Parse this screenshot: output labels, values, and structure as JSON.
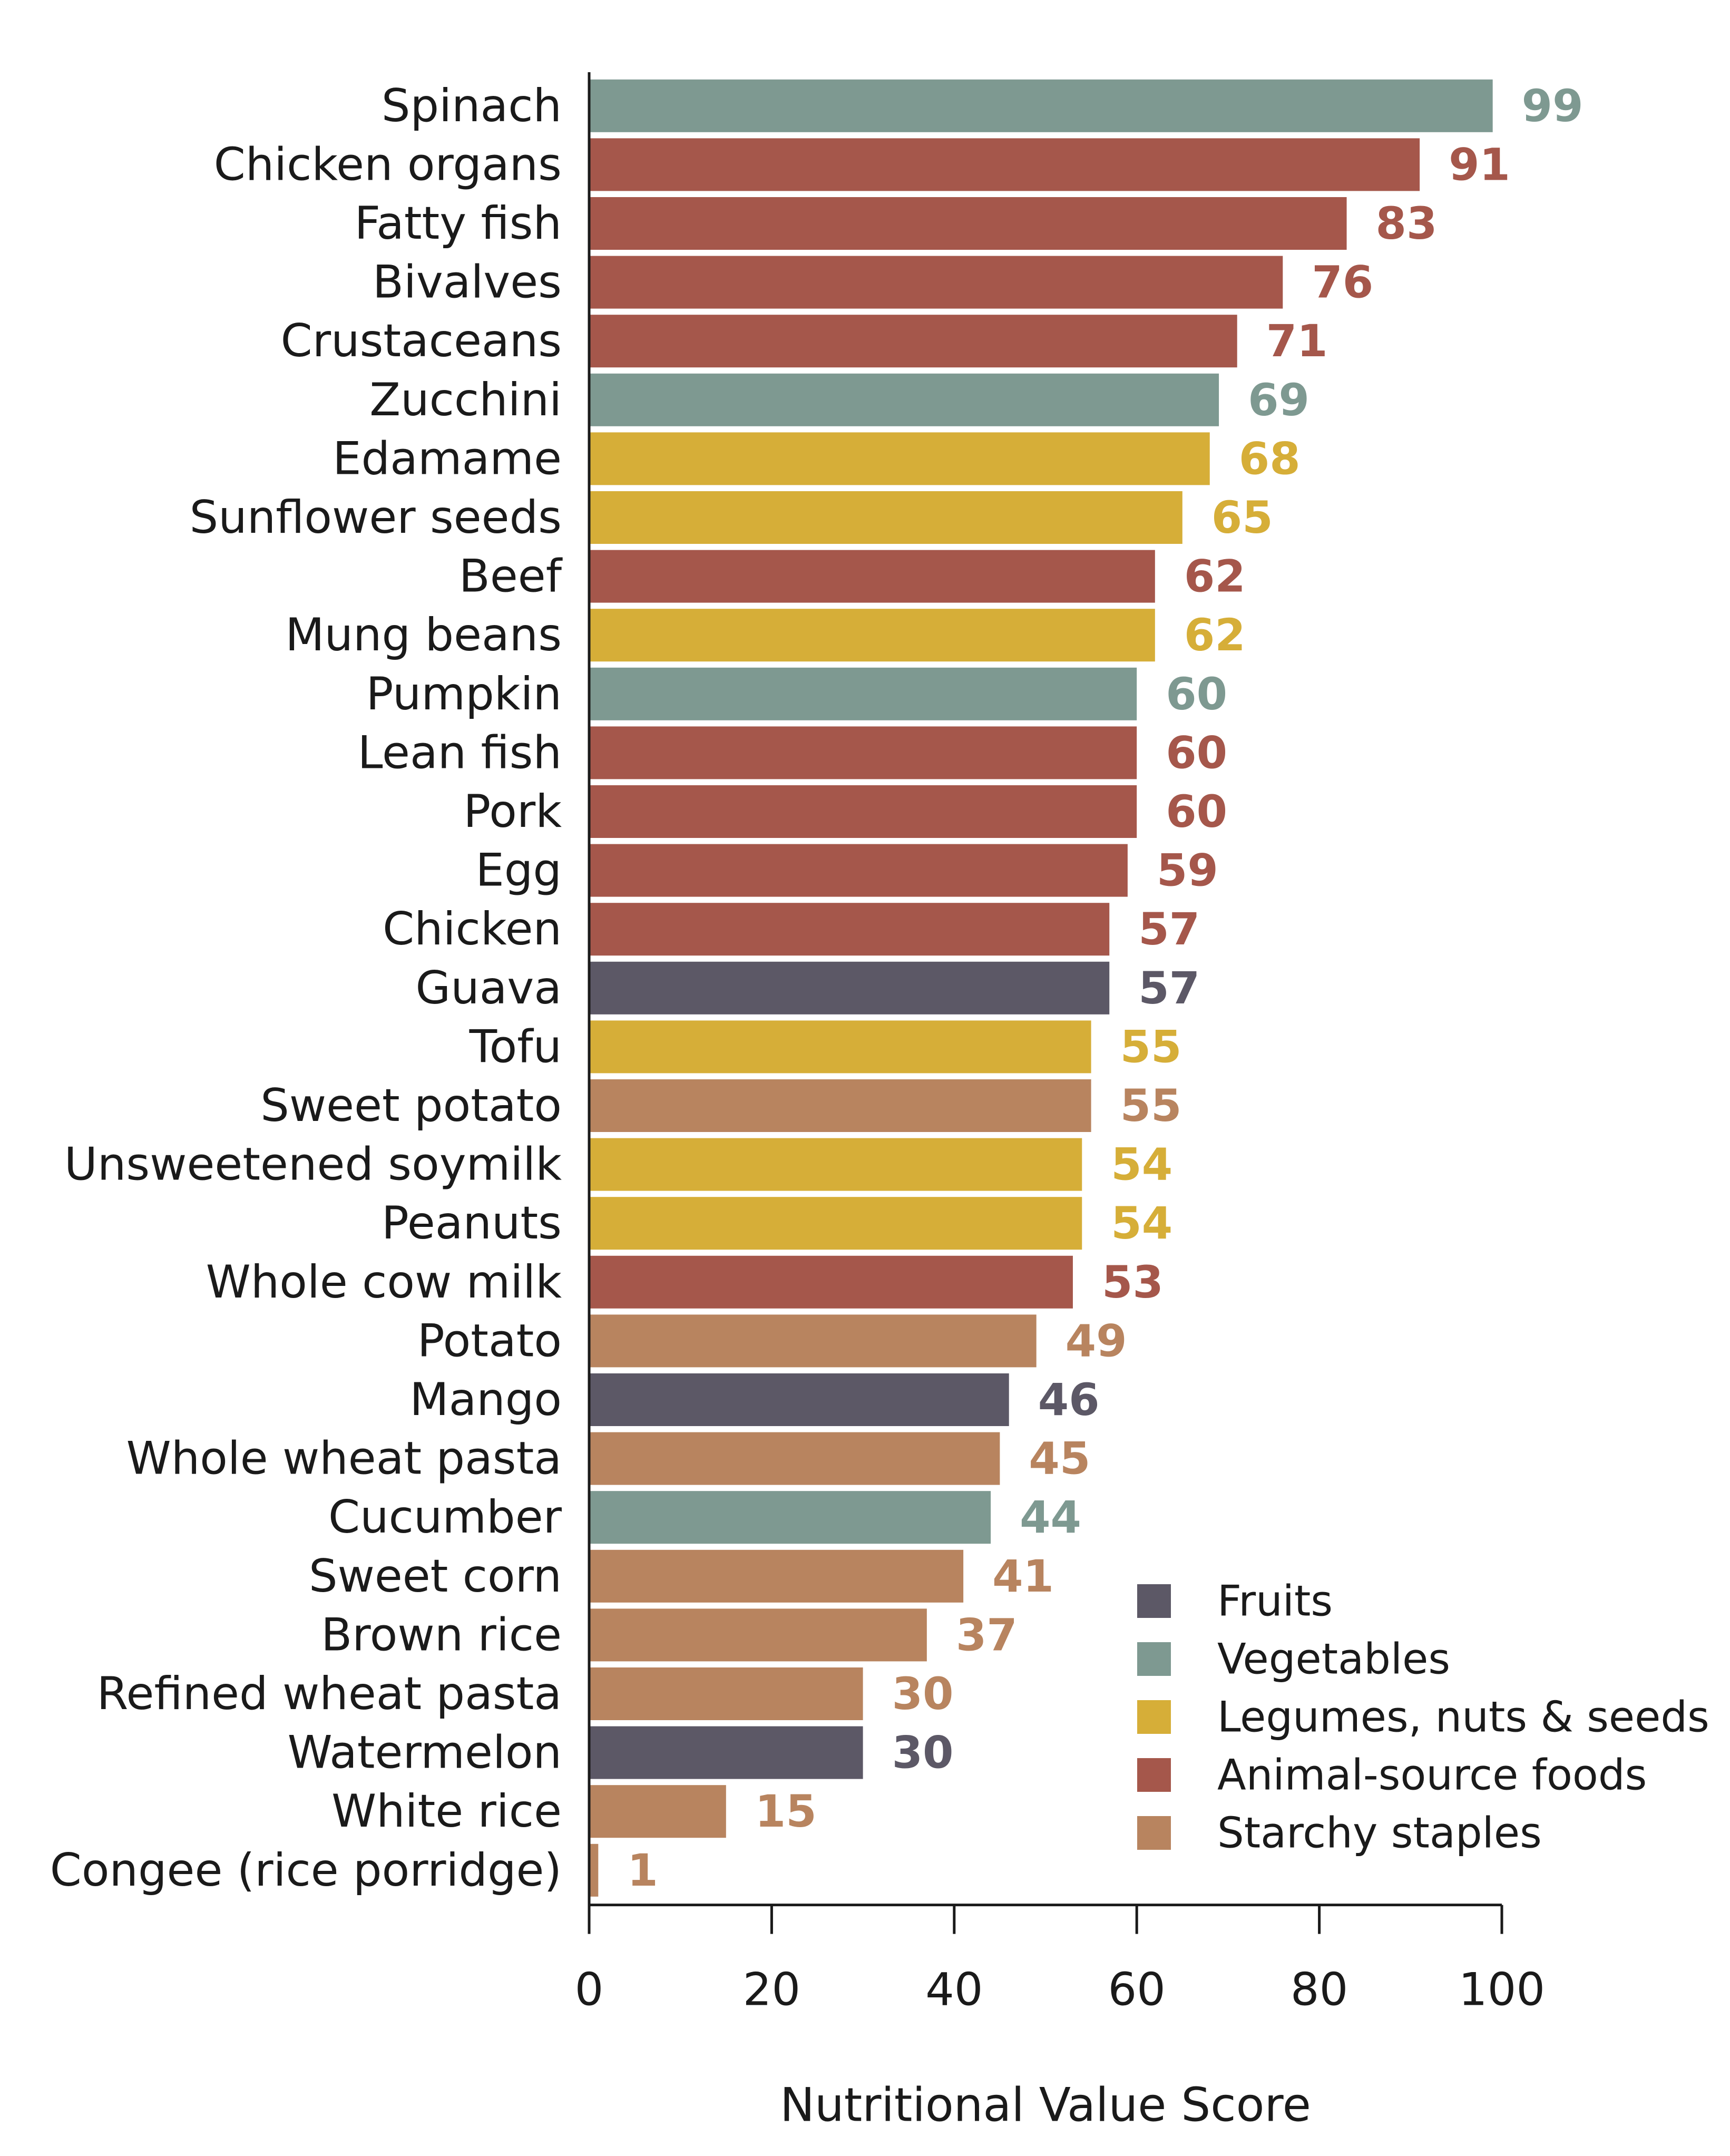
{
  "chart_data": {
    "type": "bar",
    "orientation": "horizontal",
    "xlabel": "Nutritional Value Score",
    "xlim": [
      0,
      100
    ],
    "xticks": [
      0,
      20,
      40,
      60,
      80,
      100
    ],
    "grid": false,
    "legend_position": "bottom-right",
    "groups": [
      {
        "key": "fruits",
        "name": "Fruits",
        "color": "#5c5866"
      },
      {
        "key": "vegetables",
        "name": "Vegetables",
        "color": "#7e9991"
      },
      {
        "key": "legumes",
        "name": "Legumes, nuts & seeds",
        "color": "#d6ae38"
      },
      {
        "key": "animal",
        "name": "Animal-source foods",
        "color": "#a5574b"
      },
      {
        "key": "starchy",
        "name": "Starchy staples",
        "color": "#b8845f"
      }
    ],
    "bars": [
      {
        "category": "Spinach",
        "value": 99,
        "group": "vegetables"
      },
      {
        "category": "Chicken organs",
        "value": 91,
        "group": "animal"
      },
      {
        "category": "Fatty fish",
        "value": 83,
        "group": "animal"
      },
      {
        "category": "Bivalves",
        "value": 76,
        "group": "animal"
      },
      {
        "category": "Crustaceans",
        "value": 71,
        "group": "animal"
      },
      {
        "category": "Zucchini",
        "value": 69,
        "group": "vegetables"
      },
      {
        "category": "Edamame",
        "value": 68,
        "group": "legumes"
      },
      {
        "category": "Sunflower seeds",
        "value": 65,
        "group": "legumes"
      },
      {
        "category": "Beef",
        "value": 62,
        "group": "animal"
      },
      {
        "category": "Mung beans",
        "value": 62,
        "group": "legumes"
      },
      {
        "category": "Pumpkin",
        "value": 60,
        "group": "vegetables"
      },
      {
        "category": "Lean fish",
        "value": 60,
        "group": "animal"
      },
      {
        "category": "Pork",
        "value": 60,
        "group": "animal"
      },
      {
        "category": "Egg",
        "value": 59,
        "group": "animal"
      },
      {
        "category": "Chicken",
        "value": 57,
        "group": "animal"
      },
      {
        "category": "Guava",
        "value": 57,
        "group": "fruits"
      },
      {
        "category": "Tofu",
        "value": 55,
        "group": "legumes"
      },
      {
        "category": "Sweet potato",
        "value": 55,
        "group": "starchy"
      },
      {
        "category": "Unsweetened soymilk",
        "value": 54,
        "group": "legumes"
      },
      {
        "category": "Peanuts",
        "value": 54,
        "group": "legumes"
      },
      {
        "category": "Whole cow milk",
        "value": 53,
        "group": "animal"
      },
      {
        "category": "Potato",
        "value": 49,
        "group": "starchy"
      },
      {
        "category": "Mango",
        "value": 46,
        "group": "fruits"
      },
      {
        "category": "Whole wheat pasta",
        "value": 45,
        "group": "starchy"
      },
      {
        "category": "Cucumber",
        "value": 44,
        "group": "vegetables"
      },
      {
        "category": "Sweet corn",
        "value": 41,
        "group": "starchy"
      },
      {
        "category": "Brown rice",
        "value": 37,
        "group": "starchy"
      },
      {
        "category": "Refined wheat pasta",
        "value": 30,
        "group": "starchy"
      },
      {
        "category": "Watermelon",
        "value": 30,
        "group": "fruits"
      },
      {
        "category": "White rice",
        "value": 15,
        "group": "starchy"
      },
      {
        "category": "Congee (rice porridge)",
        "value": 1,
        "group": "starchy"
      }
    ]
  }
}
